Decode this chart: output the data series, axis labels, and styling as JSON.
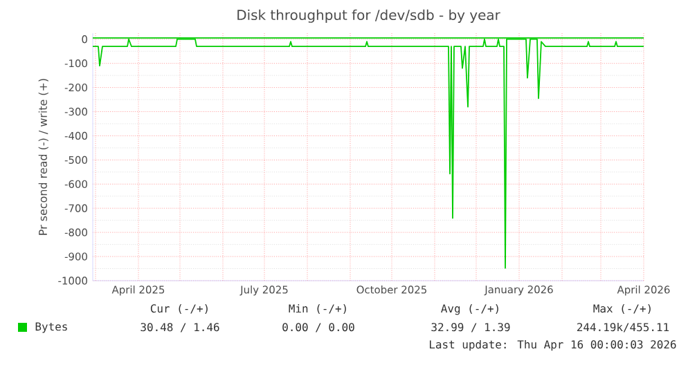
{
  "chart_data": {
    "type": "line",
    "title": "Disk throughput for /dev/sdb - by year",
    "ylabel": "Pr second read (-) / write (+)",
    "xlim": [
      "2025-02-27",
      "2026-04-01"
    ],
    "ylim": [
      -1000,
      25
    ],
    "xticks": [
      {
        "value": "2025-03-01",
        "label": null
      },
      {
        "value": "2025-04-01",
        "label": "April 2025"
      },
      {
        "value": "2025-05-01",
        "label": null
      },
      {
        "value": "2025-06-01",
        "label": null
      },
      {
        "value": "2025-07-01",
        "label": "July 2025"
      },
      {
        "value": "2025-08-01",
        "label": null
      },
      {
        "value": "2025-09-01",
        "label": null
      },
      {
        "value": "2025-10-01",
        "label": "October 2025"
      },
      {
        "value": "2025-11-01",
        "label": null
      },
      {
        "value": "2025-12-01",
        "label": null
      },
      {
        "value": "2026-01-01",
        "label": "January 2026"
      },
      {
        "value": "2026-02-01",
        "label": null
      },
      {
        "value": "2026-03-01",
        "label": null
      },
      {
        "value": "2026-04-01",
        "label": "April 2026"
      }
    ],
    "yticks": [
      -1000,
      -900,
      -800,
      -700,
      -600,
      -500,
      -400,
      -300,
      -200,
      -100,
      0
    ],
    "grid": true,
    "legend": "bottom",
    "marker": "none",
    "line_style": "solid",
    "series": [
      {
        "name": "Bytes",
        "color": "#00cc00",
        "x": [
          "2025-02-27",
          "2025-03-03",
          "2025-03-04",
          "2025-03-06",
          "2025-03-24",
          "2025-03-25",
          "2025-03-27",
          "2025-04-28",
          "2025-04-29",
          "2025-05-12",
          "2025-05-13",
          "2025-07-19",
          "2025-07-20",
          "2025-07-21",
          "2025-09-12",
          "2025-09-13",
          "2025-09-14",
          "2025-11-11",
          "2025-11-12",
          "2025-11-13",
          "2025-11-14",
          "2025-11-15",
          "2025-11-20",
          "2025-11-21",
          "2025-11-23",
          "2025-11-25",
          "2025-11-26",
          "2025-12-06",
          "2025-12-07",
          "2025-12-08",
          "2025-12-16",
          "2025-12-17",
          "2025-12-18",
          "2025-12-21",
          "2025-12-22",
          "2025-12-23",
          "2026-01-06",
          "2026-01-07",
          "2026-01-09",
          "2026-01-14",
          "2026-01-15",
          "2026-01-17",
          "2026-01-20",
          "2026-02-19",
          "2026-02-20",
          "2026-02-21",
          "2026-03-11",
          "2026-03-12",
          "2026-03-13",
          "2026-04-01"
        ],
        "values": [
          -30,
          -30,
          -110,
          -30,
          -30,
          0,
          -30,
          -30,
          0,
          0,
          -30,
          -30,
          -10,
          -30,
          -30,
          -10,
          -30,
          -30,
          -557,
          -30,
          -741,
          -30,
          -30,
          -120,
          -30,
          -280,
          -30,
          -30,
          0,
          -30,
          -30,
          0,
          -30,
          -30,
          -948,
          0,
          0,
          -160,
          0,
          0,
          -245,
          -10,
          -30,
          -30,
          -10,
          -30,
          -30,
          -10,
          -30,
          -30
        ]
      },
      {
        "color": "#00cc00",
        "x": [
          "2025-02-27",
          "2026-04-01"
        ],
        "values": [
          5,
          5
        ]
      }
    ],
    "annotations": [
      "Cur (-/+)",
      "Min (-/+)",
      "Avg (-/+)",
      "Max (-/+)",
      "30.48 /  1.46",
      "0.00 /  0.00",
      "32.99 /  1.39",
      "244.19k/455.11",
      "Last update: Thu Apr 16 00:00:03 2026"
    ]
  }
}
